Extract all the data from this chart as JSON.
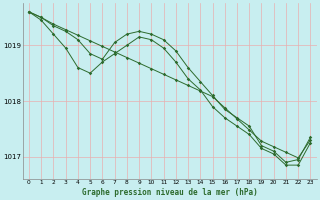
{
  "xlabel": "Graphe pression niveau de la mer (hPa)",
  "ylim": [
    1016.6,
    1019.75
  ],
  "xlim": [
    -0.5,
    23.5
  ],
  "yticks": [
    1017,
    1018,
    1019
  ],
  "xticks": [
    0,
    1,
    2,
    3,
    4,
    5,
    6,
    7,
    8,
    9,
    10,
    11,
    12,
    13,
    14,
    15,
    16,
    17,
    18,
    19,
    20,
    21,
    22,
    23
  ],
  "bg_color": "#c8eef0",
  "grid_color": "#e8b0b0",
  "line_color": "#2d6b2d",
  "line1": [
    1019.6,
    1019.5,
    1019.35,
    1019.25,
    1019.1,
    1018.85,
    1018.75,
    1019.05,
    1019.2,
    1019.25,
    1019.2,
    1019.1,
    1018.9,
    1018.6,
    1018.35,
    1018.1,
    1017.85,
    1017.7,
    1017.55,
    1017.2,
    1017.1,
    1016.9,
    1016.95,
    1017.35
  ],
  "line2": [
    1019.6,
    1019.45,
    1019.2,
    1018.95,
    1018.6,
    1018.5,
    1018.7,
    1018.85,
    1019.0,
    1019.15,
    1019.1,
    1018.95,
    1018.7,
    1018.4,
    1018.2,
    1017.9,
    1017.7,
    1017.55,
    1017.4,
    1017.15,
    1017.05,
    1016.85,
    1016.85,
    1017.25
  ],
  "line3": [
    1019.6,
    1019.5,
    1019.38,
    1019.28,
    1019.18,
    1019.08,
    1018.98,
    1018.88,
    1018.78,
    1018.68,
    1018.58,
    1018.48,
    1018.38,
    1018.28,
    1018.18,
    1018.08,
    1017.88,
    1017.68,
    1017.48,
    1017.28,
    1017.18,
    1017.08,
    1016.98,
    1017.3
  ]
}
